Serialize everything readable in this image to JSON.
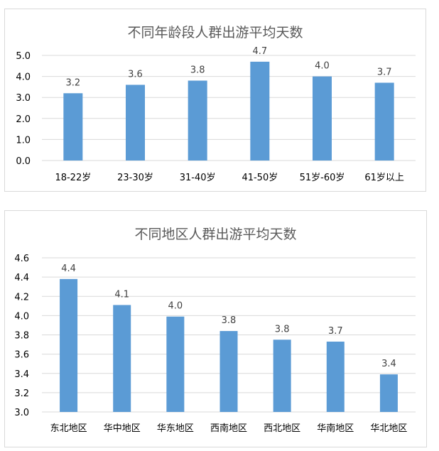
{
  "chart_data": [
    {
      "type": "bar",
      "title": "不同年龄段人群出游平均天数",
      "categories": [
        "18-22岁",
        "23-30岁",
        "31-40岁",
        "41-50岁",
        "51岁-60岁",
        "61岁以上"
      ],
      "values": [
        3.2,
        3.6,
        3.8,
        4.7,
        4.0,
        3.7
      ],
      "data_labels": [
        "3.2",
        "3.6",
        "3.8",
        "4.7",
        "4.0",
        "3.7"
      ],
      "ylim": [
        0,
        5
      ],
      "yticks": [
        "0.0",
        "1.0",
        "2.0",
        "3.0",
        "4.0",
        "5.0"
      ],
      "ytick_values": [
        0,
        1,
        2,
        3,
        4,
        5
      ],
      "grid": true,
      "bar_color": "#5b9bd5"
    },
    {
      "type": "bar",
      "title": "不同地区人群出游平均天数",
      "categories": [
        "东北地区",
        "华中地区",
        "华东地区",
        "西南地区",
        "西北地区",
        "华南地区",
        "华北地区"
      ],
      "values": [
        4.38,
        4.11,
        3.99,
        3.84,
        3.75,
        3.73,
        3.39
      ],
      "data_labels": [
        "4.4",
        "4.1",
        "4.0",
        "3.8",
        "3.8",
        "3.7",
        "3.4"
      ],
      "ylim": [
        3.0,
        4.6
      ],
      "yticks": [
        "3.0",
        "3.2",
        "3.4",
        "3.6",
        "3.8",
        "4.0",
        "4.2",
        "4.4",
        "4.6"
      ],
      "ytick_values": [
        3.0,
        3.2,
        3.4,
        3.6,
        3.8,
        4.0,
        4.2,
        4.4,
        4.6
      ],
      "grid": true,
      "bar_color": "#5b9bd5"
    }
  ]
}
